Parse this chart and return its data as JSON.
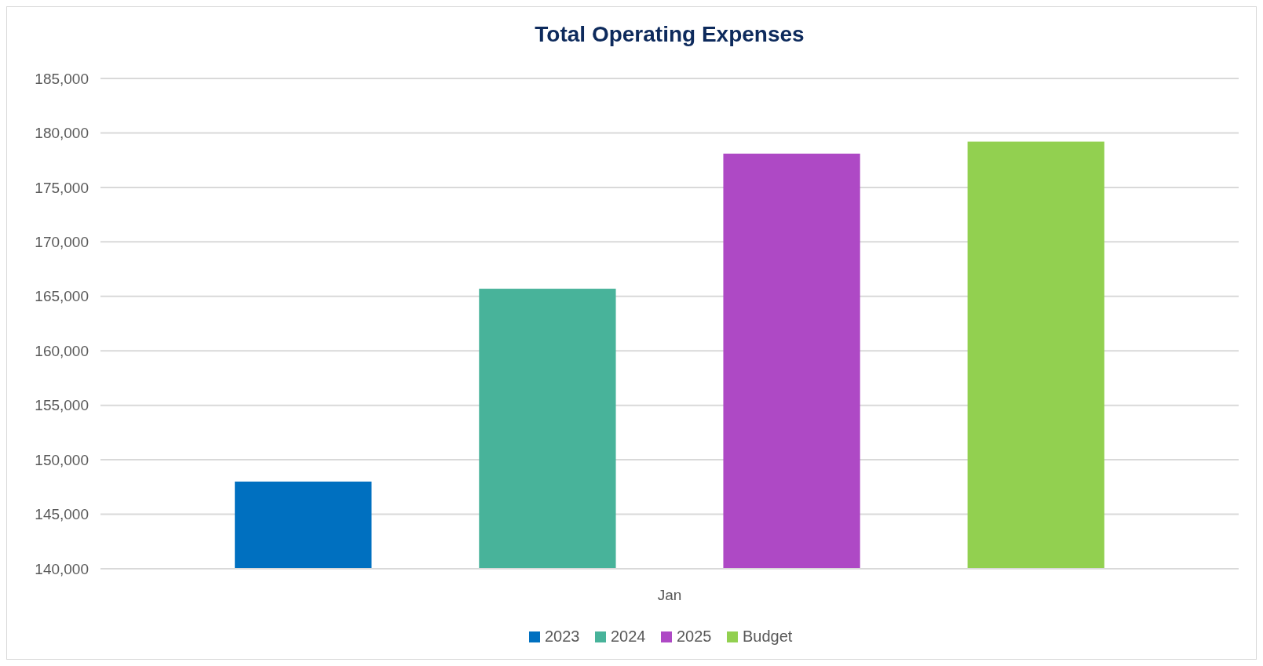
{
  "chart_data": {
    "type": "bar",
    "title": "Total Operating Expenses",
    "categories": [
      "Jan"
    ],
    "series": [
      {
        "name": "2023",
        "color": "#0070c0",
        "values": [
          148000
        ]
      },
      {
        "name": "2024",
        "color": "#48b39a",
        "values": [
          165700
        ]
      },
      {
        "name": "2025",
        "color": "#ae49c5",
        "values": [
          178100
        ]
      },
      {
        "name": "Budget",
        "color": "#92d050",
        "values": [
          179200
        ]
      }
    ],
    "ylim": [
      140000,
      185000
    ],
    "yticks": [
      {
        "value": 140000,
        "label": "140,000"
      },
      {
        "value": 145000,
        "label": "145,000"
      },
      {
        "value": 150000,
        "label": "150,000"
      },
      {
        "value": 155000,
        "label": "155,000"
      },
      {
        "value": 160000,
        "label": "160,000"
      },
      {
        "value": 165000,
        "label": "165,000"
      },
      {
        "value": 170000,
        "label": "170,000"
      },
      {
        "value": 175000,
        "label": "175,000"
      },
      {
        "value": 180000,
        "label": "180,000"
      },
      {
        "value": 185000,
        "label": "185,000"
      }
    ],
    "grid": "y",
    "legend": "bottom"
  }
}
